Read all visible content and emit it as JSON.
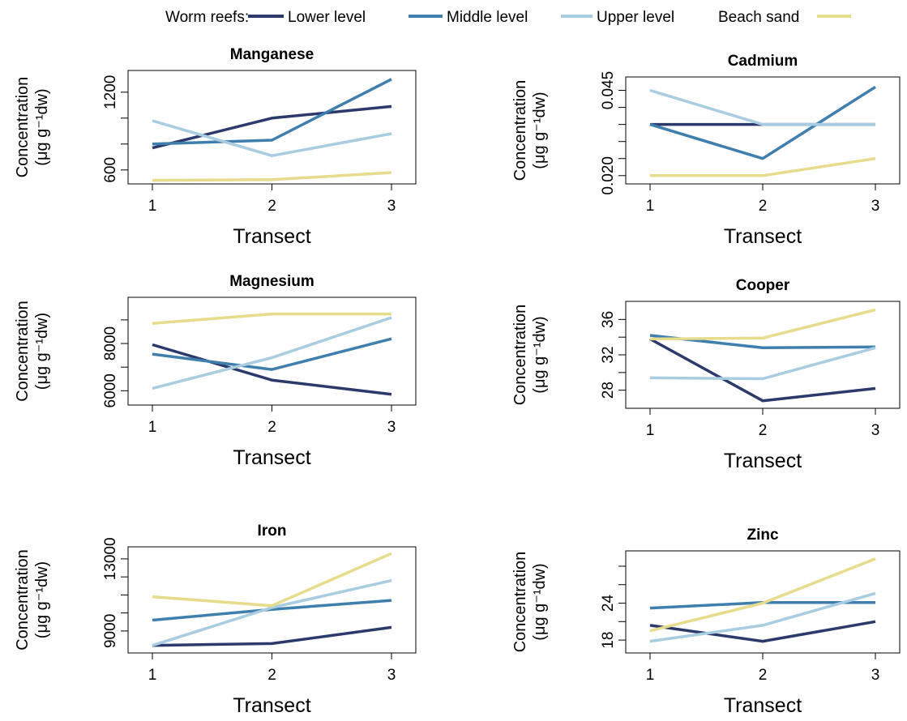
{
  "legend": {
    "group_label": "Worm reefs:",
    "entries": [
      {
        "label": "Lower level",
        "color": "#2b3a6b"
      },
      {
        "label": "Middle level",
        "color": "#3f7fae"
      },
      {
        "label": "Upper level",
        "color": "#a9cde0"
      },
      {
        "label": "Beach sand",
        "color": "#e6dc8c"
      }
    ]
  },
  "chart_data": [
    {
      "type": "line",
      "title": "Manganese",
      "xlabel": "Transect",
      "ylabel": "Concentration",
      "ylabel_unit": "(μg g⁻¹dw)",
      "x": [
        1,
        2,
        3
      ],
      "ylim": [
        530,
        1330
      ],
      "yticks": [
        600,
        800,
        1000,
        1200
      ],
      "ytick_labels": [
        "600",
        "",
        "",
        "1200"
      ],
      "series": [
        {
          "name": "Lower level",
          "color": "#2b3a6b",
          "values": [
            770,
            1000,
            1090
          ]
        },
        {
          "name": "Middle level",
          "color": "#3f7fae",
          "values": [
            800,
            830,
            1300
          ]
        },
        {
          "name": "Upper level",
          "color": "#a9cde0",
          "values": [
            980,
            710,
            880
          ]
        },
        {
          "name": "Beach sand",
          "color": "#e6dc8c",
          "values": [
            520,
            525,
            580
          ]
        }
      ]
    },
    {
      "type": "line",
      "title": "Cadmium",
      "xlabel": "Transect",
      "ylabel": "Concentration",
      "ylabel_unit": "(μg g⁻¹dw)",
      "x": [
        1,
        2,
        3
      ],
      "ylim": [
        0.019,
        0.0475
      ],
      "yticks": [
        0.02,
        0.025,
        0.03,
        0.035,
        0.04,
        0.045
      ],
      "ytick_labels": [
        "0.020",
        "",
        "",
        "",
        "",
        "0.045"
      ],
      "series": [
        {
          "name": "Lower level",
          "color": "#2b3a6b",
          "values": [
            0.035,
            0.035,
            0.035
          ]
        },
        {
          "name": "Middle level",
          "color": "#3f7fae",
          "values": [
            0.035,
            0.025,
            0.046
          ]
        },
        {
          "name": "Upper level",
          "color": "#a9cde0",
          "values": [
            0.045,
            0.035,
            0.035
          ]
        },
        {
          "name": "Beach sand",
          "color": "#e6dc8c",
          "values": [
            0.02,
            0.02,
            0.025
          ]
        }
      ]
    },
    {
      "type": "line",
      "title": "Magnesium",
      "xlabel": "Transect",
      "ylabel": "Concentration",
      "ylabel_unit": "(μg g⁻¹dw)",
      "x": [
        1,
        2,
        3
      ],
      "ylim": [
        5600,
        9750
      ],
      "yticks": [
        6000,
        7000,
        8000,
        9000
      ],
      "ytick_labels": [
        "6000",
        "",
        "8000",
        ""
      ],
      "series": [
        {
          "name": "Lower level",
          "color": "#2b3a6b",
          "values": [
            7950,
            6450,
            5850
          ]
        },
        {
          "name": "Middle level",
          "color": "#3f7fae",
          "values": [
            7550,
            6900,
            8200
          ]
        },
        {
          "name": "Upper level",
          "color": "#a9cde0",
          "values": [
            6100,
            7400,
            9100
          ]
        },
        {
          "name": "Beach sand",
          "color": "#e6dc8c",
          "values": [
            8850,
            9250,
            9250
          ]
        }
      ]
    },
    {
      "type": "line",
      "title": "Cooper",
      "xlabel": "Transect",
      "ylabel": "Concentration",
      "ylabel_unit": "(μg g⁻¹dw)",
      "x": [
        1,
        2,
        3
      ],
      "ylim": [
        26.5,
        37.5
      ],
      "yticks": [
        28,
        30,
        32,
        34,
        36
      ],
      "ytick_labels": [
        "28",
        "",
        "32",
        "",
        "36"
      ],
      "series": [
        {
          "name": "Lower level",
          "color": "#2b3a6b",
          "values": [
            33.8,
            26.8,
            28.2
          ]
        },
        {
          "name": "Middle level",
          "color": "#3f7fae",
          "values": [
            34.2,
            32.8,
            32.9
          ]
        },
        {
          "name": "Upper level",
          "color": "#a9cde0",
          "values": [
            29.4,
            29.3,
            32.8
          ]
        },
        {
          "name": "Beach sand",
          "color": "#e6dc8c",
          "values": [
            33.8,
            33.9,
            37.1
          ]
        }
      ]
    },
    {
      "type": "line",
      "title": "Iron",
      "xlabel": "Transect",
      "ylabel": "Concentration",
      "ylabel_unit": "(μg g⁻¹dw)",
      "x": [
        1,
        2,
        3
      ],
      "ylim": [
        8050,
        13400
      ],
      "yticks": [
        9000,
        10000,
        11000,
        12000,
        13000
      ],
      "ytick_labels": [
        "9000",
        "",
        "",
        "",
        "13000"
      ],
      "series": [
        {
          "name": "Lower level",
          "color": "#2b3a6b",
          "values": [
            8200,
            8300,
            9200
          ]
        },
        {
          "name": "Middle level",
          "color": "#3f7fae",
          "values": [
            9600,
            10200,
            10700
          ]
        },
        {
          "name": "Upper level",
          "color": "#a9cde0",
          "values": [
            8200,
            10300,
            11800
          ]
        },
        {
          "name": "Beach sand",
          "color": "#e6dc8c",
          "values": [
            10900,
            10400,
            13300
          ]
        }
      ]
    },
    {
      "type": "line",
      "title": "Zinc",
      "xlabel": "Transect",
      "ylabel": "Concentration",
      "ylabel_unit": "(μg g⁻¹dw)",
      "x": [
        1,
        2,
        3
      ],
      "ylim": [
        16.7,
        31.7
      ],
      "yticks": [
        18,
        21,
        24,
        27,
        30
      ],
      "ytick_labels": [
        "18",
        "",
        "24",
        "",
        ""
      ],
      "series": [
        {
          "name": "Lower level",
          "color": "#2b3a6b",
          "values": [
            20.4,
            17.8,
            21.0
          ]
        },
        {
          "name": "Middle level",
          "color": "#3f7fae",
          "values": [
            23.2,
            24.1,
            24.1
          ]
        },
        {
          "name": "Upper level",
          "color": "#a9cde0",
          "values": [
            17.8,
            20.4,
            25.6
          ]
        },
        {
          "name": "Beach sand",
          "color": "#e6dc8c",
          "values": [
            19.5,
            24.0,
            31.2
          ]
        }
      ]
    }
  ]
}
